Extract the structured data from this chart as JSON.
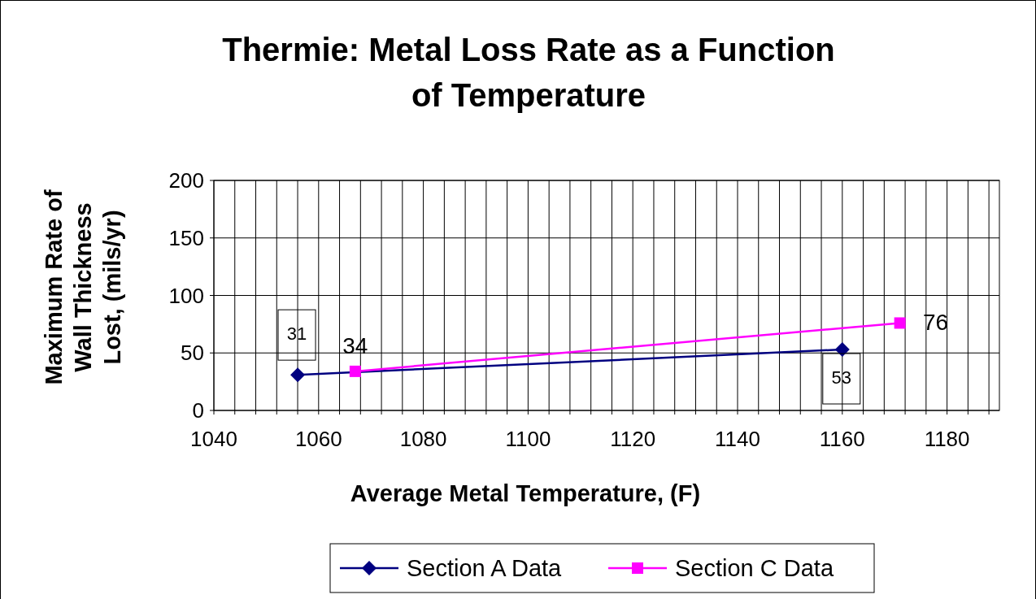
{
  "chart_data": {
    "type": "line",
    "title": "Thermie:  Metal Loss Rate as a Function of Temperature",
    "xlabel": "Average Metal Temperature, (F)",
    "ylabel": "Maximum Rate of Wall Thickness Lost, (mils/yr)",
    "series": [
      {
        "name": "Section A Data",
        "color": "#000080",
        "marker": "diamond",
        "x": [
          1056,
          1160
        ],
        "values": [
          31,
          53
        ]
      },
      {
        "name": "Section C Data",
        "color": "#ff00ff",
        "marker": "square",
        "x": [
          1067,
          1171
        ],
        "values": [
          34,
          76
        ]
      }
    ],
    "xlim": [
      1040,
      1190
    ],
    "xticks": [
      1040,
      {
        "value": 1044,
        "label": null
      },
      {
        "value": 1048,
        "label": null
      },
      {
        "value": 1052,
        "label": null
      },
      {
        "value": 1056,
        "label": null
      },
      1060,
      {
        "value": 1064,
        "label": null
      },
      {
        "value": 1068,
        "label": null
      },
      {
        "value": 1072,
        "label": null
      },
      {
        "value": 1076,
        "label": null
      },
      1080,
      {
        "value": 1084,
        "label": null
      },
      {
        "value": 1088,
        "label": null
      },
      {
        "value": 1092,
        "label": null
      },
      {
        "value": 1096,
        "label": null
      },
      1100,
      {
        "value": 1104,
        "label": null
      },
      {
        "value": 1108,
        "label": null
      },
      {
        "value": 1112,
        "label": null
      },
      {
        "value": 1116,
        "label": null
      },
      1120,
      {
        "value": 1124,
        "label": null
      },
      {
        "value": 1128,
        "label": null
      },
      {
        "value": 1132,
        "label": null
      },
      {
        "value": 1136,
        "label": null
      },
      1140,
      {
        "value": 1144,
        "label": null
      },
      {
        "value": 1148,
        "label": null
      },
      {
        "value": 1152,
        "label": null
      },
      {
        "value": 1156,
        "label": null
      },
      1160,
      {
        "value": 1164,
        "label": null
      },
      {
        "value": 1168,
        "label": null
      },
      {
        "value": 1172,
        "label": null
      },
      {
        "value": 1176,
        "label": null
      },
      1180,
      {
        "value": 1184,
        "label": null
      },
      {
        "value": 1188,
        "label": null
      }
    ],
    "ylim": [
      0,
      200
    ],
    "yticks": [
      0,
      50,
      100,
      150,
      200
    ],
    "grid": true,
    "legend": "bottom",
    "data_labels": true,
    "line_style": "solid"
  }
}
